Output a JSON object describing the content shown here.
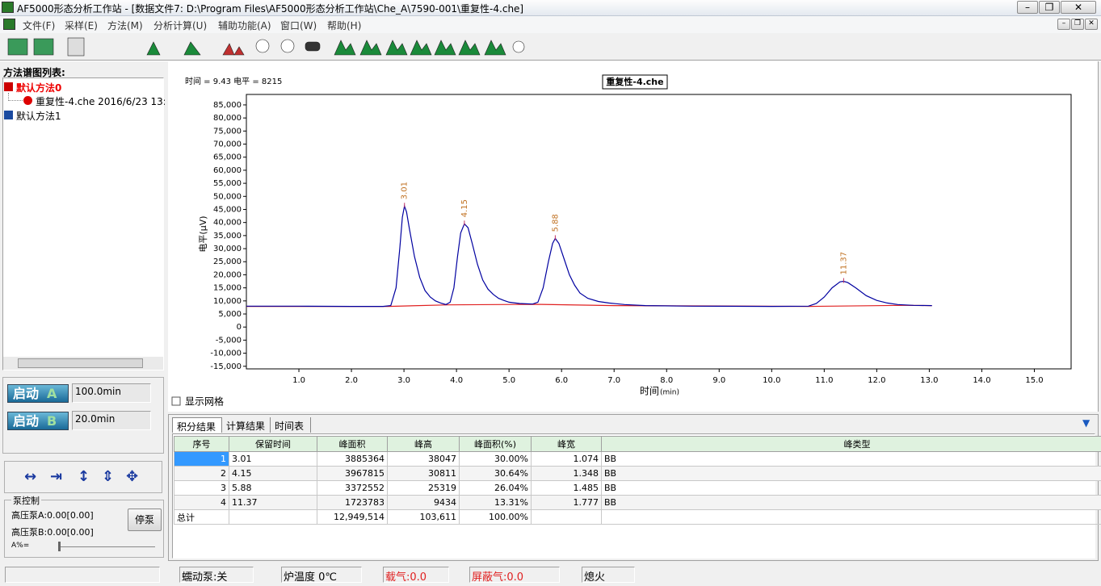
{
  "window": {
    "title": "AF5000形态分析工作站 - [数据文件7: D:\\Program Files\\AF5000形态分析工作站\\Che_A\\7590-001\\重复性-4.che]"
  },
  "menu": [
    "文件(F)",
    "采样(E)",
    "方法(M)",
    "分析计算(U)",
    "辅助功能(A)",
    "窗口(W)",
    "帮助(H)"
  ],
  "left_panel": {
    "title": "方法谱图列表:",
    "tree": [
      "默认方法0",
      "重复性-4.che 2016/6/23 13:3",
      "默认方法1"
    ]
  },
  "start": [
    {
      "label": "启动",
      "channel": "A",
      "time": "100.0min"
    },
    {
      "label": "启动",
      "channel": "B",
      "time": "20.0min"
    }
  ],
  "pump": {
    "title": "泵控制",
    "pumps": [
      "高压泵A:0.00[0.00]",
      "高压泵B:0.00[0.00]"
    ],
    "button": "停泵",
    "slider": "A%="
  },
  "chart_data": {
    "type": "line",
    "title": "重复性-4.che",
    "annotation": "时间 = 9.43 电平 = 8215",
    "x_label": "时间",
    "x_unit": "(min)",
    "y_label": "电平(μV)",
    "xlim": [
      0,
      15.7
    ],
    "ylim": [
      -16000,
      89000
    ],
    "xticks": [
      {
        "value": 1,
        "label": "1.0"
      },
      {
        "value": 2,
        "label": "2.0"
      },
      {
        "value": 3,
        "label": "3.0"
      },
      {
        "value": 4,
        "label": "4.0"
      },
      {
        "value": 5,
        "label": "5.0"
      },
      {
        "value": 6,
        "label": "6.0"
      },
      {
        "value": 7,
        "label": "7.0"
      },
      {
        "value": 8,
        "label": "8.0"
      },
      {
        "value": 9,
        "label": "9.0"
      },
      {
        "value": 10,
        "label": "10.0"
      },
      {
        "value": 11,
        "label": "11.0"
      },
      {
        "value": 12,
        "label": "12.0"
      },
      {
        "value": 13,
        "label": "13.0"
      },
      {
        "value": 14,
        "label": "14.0"
      },
      {
        "value": 15,
        "label": "15.0"
      }
    ],
    "yticks": [
      {
        "value": -15000,
        "label": "-15,000"
      },
      {
        "value": -10000,
        "label": "-10,000"
      },
      {
        "value": -5000,
        "label": "-5,000"
      },
      0,
      {
        "value": 5000,
        "label": "5,000"
      },
      {
        "value": 10000,
        "label": "10,000"
      },
      {
        "value": 15000,
        "label": "15,000"
      },
      {
        "value": 20000,
        "label": "20,000"
      },
      {
        "value": 25000,
        "label": "25,000"
      },
      {
        "value": 30000,
        "label": "30,000"
      },
      {
        "value": 35000,
        "label": "35,000"
      },
      {
        "value": 40000,
        "label": "40,000"
      },
      {
        "value": 45000,
        "label": "45,000"
      },
      {
        "value": 50000,
        "label": "50,000"
      },
      {
        "value": 55000,
        "label": "55,000"
      },
      {
        "value": 60000,
        "label": "60,000"
      },
      {
        "value": 65000,
        "label": "65,000"
      },
      {
        "value": 70000,
        "label": "70,000"
      },
      {
        "value": 75000,
        "label": "75,000"
      },
      {
        "value": 80000,
        "label": "80,000"
      },
      {
        "value": 85000,
        "label": "85,000"
      }
    ],
    "series": [
      {
        "color": "#0000a0",
        "x": [
          0,
          1.0,
          2.0,
          2.6,
          2.75,
          2.85,
          2.92,
          2.97,
          3.01,
          3.05,
          3.1,
          3.2,
          3.3,
          3.4,
          3.5,
          3.6,
          3.7,
          3.8,
          3.88,
          3.95,
          4.02,
          4.08,
          4.15,
          4.22,
          4.3,
          4.4,
          4.5,
          4.6,
          4.7,
          4.8,
          4.9,
          5.0,
          5.2,
          5.45,
          5.55,
          5.65,
          5.75,
          5.83,
          5.88,
          5.95,
          6.05,
          6.15,
          6.25,
          6.35,
          6.5,
          6.7,
          6.9,
          7.2,
          7.6,
          8.5,
          10.0,
          10.7,
          10.85,
          11.0,
          11.15,
          11.3,
          11.37,
          11.45,
          11.6,
          11.8,
          12.0,
          12.2,
          12.4,
          12.7,
          13.05
        ],
        "values": [
          8000,
          8000,
          7900,
          7900,
          8200,
          15000,
          30000,
          42000,
          46300,
          44000,
          38000,
          27000,
          19000,
          14000,
          11500,
          10000,
          9200,
          8600,
          9500,
          15000,
          27000,
          36000,
          39500,
          38000,
          32000,
          24000,
          18000,
          14500,
          12500,
          11000,
          10200,
          9500,
          9000,
          8800,
          9500,
          15000,
          25000,
          32000,
          33900,
          32000,
          26000,
          20000,
          16000,
          13000,
          11000,
          9800,
          9200,
          8600,
          8200,
          8000,
          7900,
          8000,
          9000,
          11500,
          15000,
          17300,
          17500,
          17000,
          15000,
          12000,
          10200,
          9200,
          8600,
          8300,
          8200
        ]
      },
      {
        "color": "#e02020",
        "x": [
          0,
          2.7,
          3.85,
          5.5,
          7.0,
          10.7,
          12.5,
          13.05
        ],
        "values": [
          7900,
          7900,
          8500,
          8700,
          8200,
          7900,
          8300,
          8200
        ]
      }
    ],
    "peaks": [
      {
        "x": 3.01,
        "y": 46300
      },
      {
        "x": 4.15,
        "y": 39500
      },
      {
        "x": 5.88,
        "y": 33900
      },
      {
        "x": 11.37,
        "y": 17500
      }
    ]
  },
  "grid_checkbox": "显示网格",
  "tabs": [
    "积分结果",
    "计算结果",
    "时间表"
  ],
  "table": {
    "columns": [
      "序号",
      "保留时间",
      "峰面积",
      "峰高",
      "峰面积(%)",
      "峰宽",
      "峰类型"
    ],
    "rows": [
      [
        "1",
        "3.01",
        "3885364",
        "38047",
        "30.00%",
        "1.074",
        "BB"
      ],
      [
        "2",
        "4.15",
        "3967815",
        "30811",
        "30.64%",
        "1.348",
        "BB"
      ],
      [
        "3",
        "5.88",
        "3372552",
        "25319",
        "26.04%",
        "1.485",
        "BB"
      ],
      [
        "4",
        "11.37",
        "1723783",
        "9434",
        "13.31%",
        "1.777",
        "BB"
      ]
    ],
    "total": {
      "label": "总计",
      "area": "12,949,514",
      "height": "103,611",
      "percent": "100.00%"
    }
  },
  "status": [
    "蠕动泵:关",
    "炉温度 0℃",
    "载气:0.0",
    "屏蔽气:0.0",
    "熄火"
  ]
}
